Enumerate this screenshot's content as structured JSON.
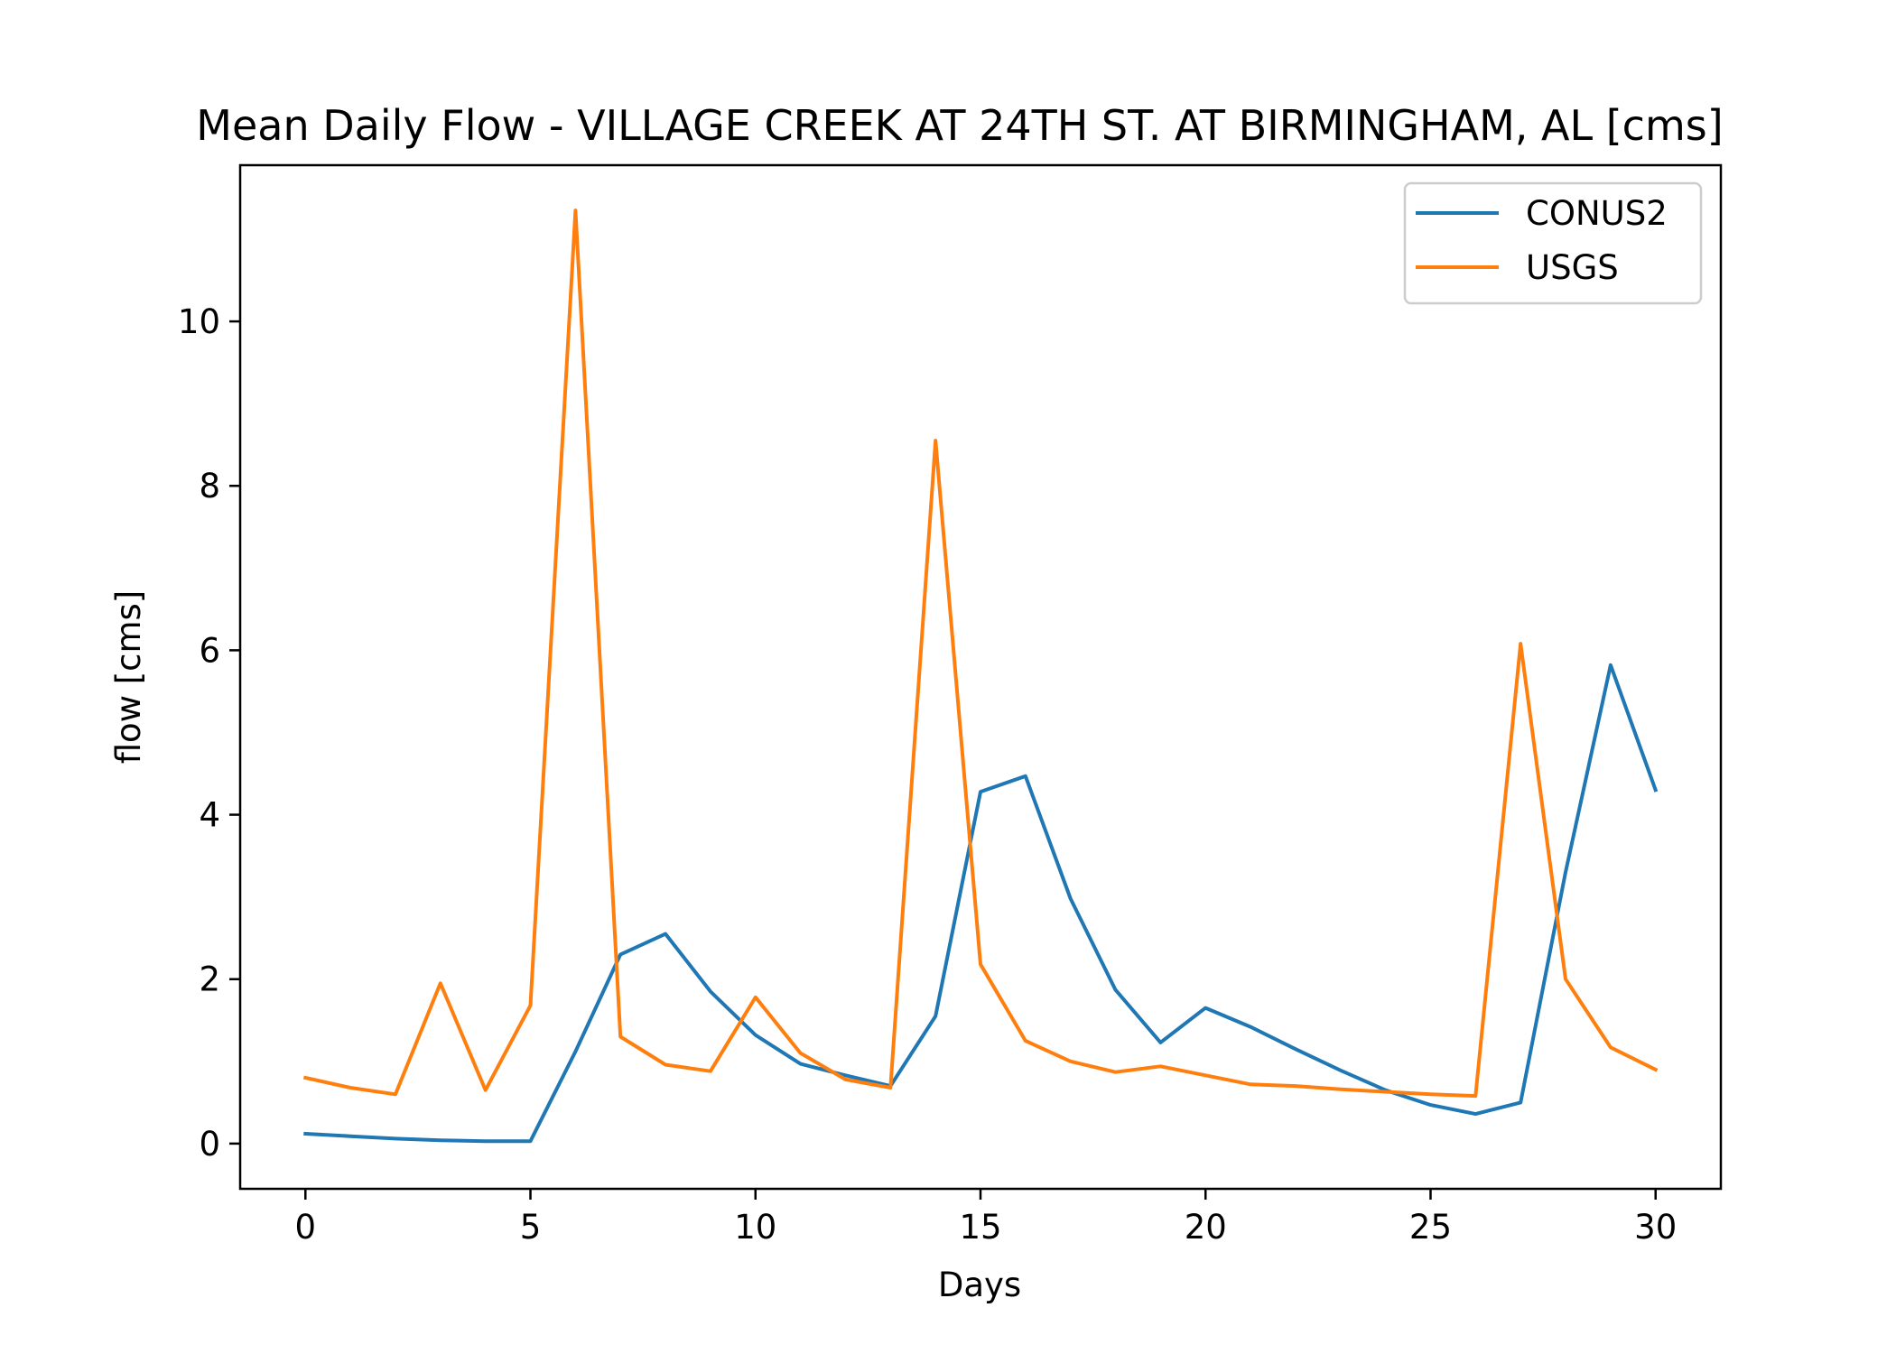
{
  "chart_data": {
    "type": "line",
    "title": "Mean Daily Flow - VILLAGE CREEK AT 24TH ST. AT BIRMINGHAM, AL [cms]",
    "xlabel": "Days",
    "ylabel": "flow [cms]",
    "xlim": [
      -1.45,
      31.45
    ],
    "ylim": [
      -0.55,
      11.9
    ],
    "xticks": [
      0,
      5,
      10,
      15,
      20,
      25,
      30
    ],
    "yticks": [
      0,
      2,
      4,
      6,
      8,
      10
    ],
    "grid": false,
    "legend_position": "top-right",
    "x": [
      0,
      1,
      2,
      3,
      4,
      5,
      6,
      7,
      8,
      9,
      10,
      11,
      12,
      13,
      14,
      15,
      16,
      17,
      18,
      19,
      20,
      21,
      22,
      23,
      24,
      25,
      26,
      27,
      28,
      29,
      30
    ],
    "series": [
      {
        "name": "CONUS2",
        "color": "#1f77b4",
        "values": [
          0.12,
          0.09,
          0.06,
          0.04,
          0.03,
          0.03,
          1.12,
          2.3,
          2.55,
          1.85,
          1.32,
          0.97,
          0.83,
          0.7,
          1.55,
          4.28,
          4.47,
          2.98,
          1.87,
          1.23,
          1.65,
          1.42,
          1.15,
          0.89,
          0.65,
          0.47,
          0.36,
          0.5,
          3.3,
          5.82,
          4.3
        ]
      },
      {
        "name": "USGS",
        "color": "#ff7f0e",
        "values": [
          0.8,
          0.68,
          0.6,
          1.95,
          0.65,
          1.68,
          11.35,
          1.3,
          0.96,
          0.88,
          1.78,
          1.1,
          0.78,
          0.68,
          8.55,
          2.18,
          1.25,
          1.0,
          0.87,
          0.94,
          0.83,
          0.72,
          0.7,
          0.66,
          0.63,
          0.6,
          0.58,
          6.08,
          2.0,
          1.17,
          0.9
        ]
      }
    ]
  }
}
